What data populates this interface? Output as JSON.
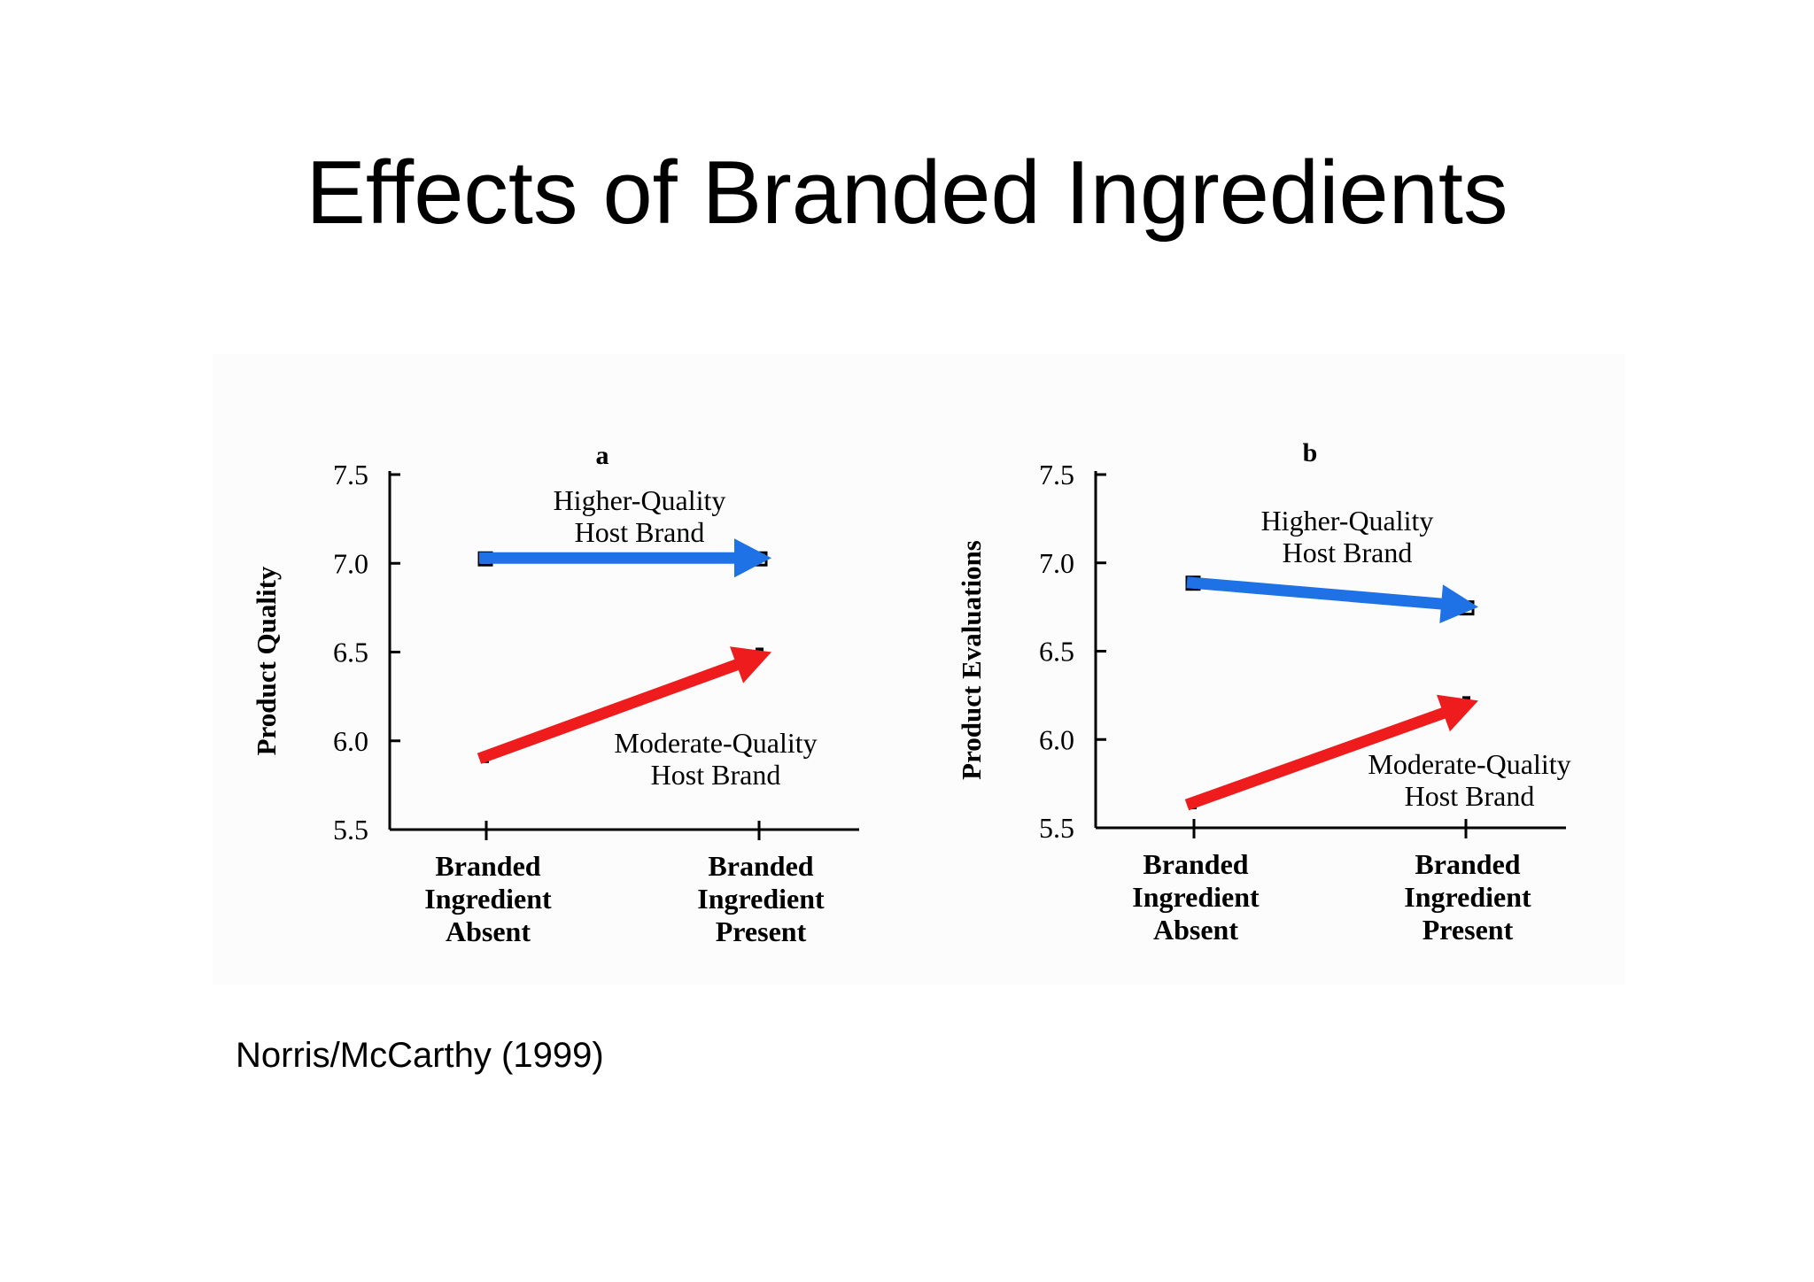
{
  "slide": {
    "title": "Effects of Branded Ingredients",
    "citation": "Norris/McCarthy (1999)"
  },
  "colors": {
    "higher_arrow": "#1f72e6",
    "moderate_arrow": "#ee1c1c",
    "ink": "#000000"
  },
  "chart_data": [
    {
      "type": "line",
      "title": "a",
      "ylabel": "Product Quality",
      "xlabel": "",
      "ylim": [
        5.5,
        7.5
      ],
      "y_ticks": [
        "7.5",
        "7.0",
        "6.5",
        "6.0",
        "5.5"
      ],
      "categories": [
        "Branded Ingredient Absent",
        "Branded Ingredient Present"
      ],
      "category_lines": [
        [
          "Branded",
          "Ingredient",
          "Absent"
        ],
        [
          "Branded",
          "Ingredient",
          "Present"
        ]
      ],
      "series": [
        {
          "name": "Higher-Quality Host Brand",
          "name_lines": [
            "Higher-Quality",
            "Host Brand"
          ],
          "values": [
            7.03,
            7.03
          ],
          "color": "blue"
        },
        {
          "name": "Moderate-Quality Host Brand",
          "name_lines": [
            "Moderate-Quality",
            "Host Brand"
          ],
          "values": [
            5.9,
            6.5
          ],
          "color": "red"
        }
      ]
    },
    {
      "type": "line",
      "title": "b",
      "ylabel": "Product Evaluations",
      "xlabel": "",
      "ylim": [
        5.5,
        7.5
      ],
      "y_ticks": [
        "7.5",
        "7.0",
        "6.5",
        "6.0",
        "5.5"
      ],
      "categories": [
        "Branded Ingredient Absent",
        "Branded Ingredient Present"
      ],
      "category_lines": [
        [
          "Branded",
          "Ingredient",
          "Absent"
        ],
        [
          "Branded",
          "Ingredient",
          "Present"
        ]
      ],
      "series": [
        {
          "name": "Higher-Quality Host Brand",
          "name_lines": [
            "Higher-Quality",
            "Host Brand"
          ],
          "values": [
            6.89,
            6.75
          ],
          "color": "blue"
        },
        {
          "name": "Moderate-Quality Host Brand",
          "name_lines": [
            "Moderate-Quality",
            "Host Brand"
          ],
          "values": [
            5.63,
            6.22
          ],
          "color": "red"
        }
      ]
    }
  ]
}
